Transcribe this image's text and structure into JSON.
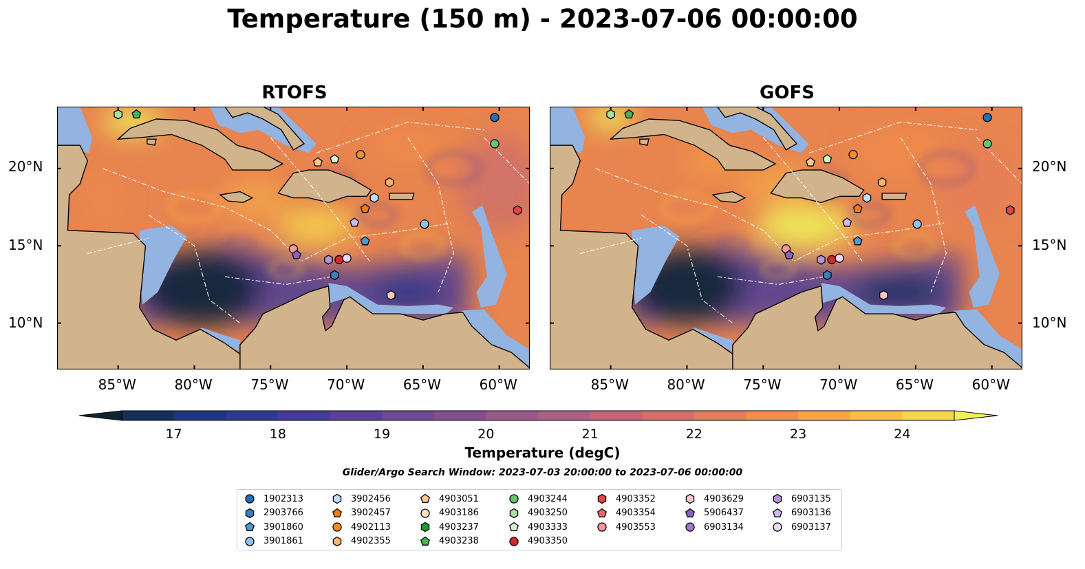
{
  "title": "Temperature (150 m) - 2023-07-06 00:00:00",
  "panels": [
    {
      "title": "RTOFS"
    },
    {
      "title": "GOFS"
    }
  ],
  "axes": {
    "x_ticks": [
      "85°W",
      "80°W",
      "75°W",
      "70°W",
      "65°W",
      "60°W"
    ],
    "y_ticks": [
      "20°N",
      "15°N",
      "10°N"
    ]
  },
  "colorbar": {
    "ticks": [
      "17",
      "18",
      "19",
      "20",
      "21",
      "22",
      "23",
      "24"
    ],
    "label": "Temperature (degC)",
    "range": [
      16.5,
      24.5
    ],
    "extend": "both"
  },
  "search_window": "Glider/Argo Search Window: 2023-07-03 20:00:00 to 2023-07-06 00:00:00",
  "legend": {
    "columns": [
      [
        {
          "id": "1902313",
          "marker": "circle",
          "color": "#1f6fb4"
        },
        {
          "id": "2903766",
          "marker": "hexagon",
          "color": "#3a7fc2"
        },
        {
          "id": "3901860",
          "marker": "pentagon",
          "color": "#4d9ad8"
        },
        {
          "id": "3901861",
          "marker": "circle",
          "color": "#8cc3ec"
        }
      ],
      [
        {
          "id": "3902456",
          "marker": "hexagon",
          "color": "#bfe1f7"
        },
        {
          "id": "3902457",
          "marker": "pentagon",
          "color": "#f07b0e"
        },
        {
          "id": "4902113",
          "marker": "circle",
          "color": "#fb8c2a"
        },
        {
          "id": "4902355",
          "marker": "hexagon",
          "color": "#fdb36b"
        }
      ],
      [
        {
          "id": "4903051",
          "marker": "pentagon",
          "color": "#fdc88f"
        },
        {
          "id": "4903186",
          "marker": "circle",
          "color": "#fde0c2"
        },
        {
          "id": "4903237",
          "marker": "hexagon",
          "color": "#1e9b2e"
        },
        {
          "id": "4903238",
          "marker": "pentagon",
          "color": "#46b550"
        }
      ],
      [
        {
          "id": "4903244",
          "marker": "circle",
          "color": "#6ac46c"
        },
        {
          "id": "4903250",
          "marker": "hexagon",
          "color": "#a6e3a0"
        },
        {
          "id": "4903333",
          "marker": "pentagon",
          "color": "#d6f5d0"
        },
        {
          "id": "4903350",
          "marker": "circle",
          "color": "#d42a2a"
        }
      ],
      [
        {
          "id": "4903352",
          "marker": "hexagon",
          "color": "#e04848"
        },
        {
          "id": "4903354",
          "marker": "pentagon",
          "color": "#ec6a6a"
        },
        {
          "id": "4903553",
          "marker": "circle",
          "color": "#f59a9a"
        }
      ],
      [
        {
          "id": "4903629",
          "marker": "hexagon",
          "color": "#fbc8c8"
        },
        {
          "id": "5906437",
          "marker": "pentagon",
          "color": "#8a62c2"
        },
        {
          "id": "6903134",
          "marker": "circle",
          "color": "#a07ad0"
        }
      ],
      [
        {
          "id": "6903135",
          "marker": "hexagon",
          "color": "#b692dc"
        },
        {
          "id": "6903136",
          "marker": "pentagon",
          "color": "#d2b7ee"
        },
        {
          "id": "6903137",
          "marker": "circle",
          "color": "#ead9f8"
        }
      ]
    ]
  },
  "map_extent": {
    "lon": [
      -89,
      -58
    ],
    "lat": [
      7,
      24
    ]
  },
  "observations": [
    {
      "lon": -85,
      "lat": 23.5,
      "marker": "hexagon",
      "color": "#a6e3a0"
    },
    {
      "lon": -83.8,
      "lat": 23.5,
      "marker": "pentagon",
      "color": "#46b550"
    },
    {
      "lon": -60.3,
      "lat": 23.3,
      "marker": "circle",
      "color": "#1f6fb4"
    },
    {
      "lon": -60.3,
      "lat": 21.6,
      "marker": "circle",
      "color": "#6ac46c"
    },
    {
      "lon": -69.1,
      "lat": 20.9,
      "marker": "circle",
      "color": "#fb8c2a"
    },
    {
      "lon": -70.8,
      "lat": 20.6,
      "marker": "pentagon",
      "color": "#d6f5d0"
    },
    {
      "lon": -71.9,
      "lat": 20.4,
      "marker": "pentagon",
      "color": "#fdc88f"
    },
    {
      "lon": -67.2,
      "lat": 19.1,
      "marker": "hexagon",
      "color": "#fdb36b"
    },
    {
      "lon": -68.2,
      "lat": 18.1,
      "marker": "hexagon",
      "color": "#bfe1f7"
    },
    {
      "lon": -68.8,
      "lat": 17.4,
      "marker": "pentagon",
      "color": "#f07b0e"
    },
    {
      "lon": -58.8,
      "lat": 17.3,
      "marker": "hexagon",
      "color": "#e04848"
    },
    {
      "lon": -69.5,
      "lat": 16.5,
      "marker": "pentagon",
      "color": "#d2b7ee"
    },
    {
      "lon": -64.9,
      "lat": 16.4,
      "marker": "circle",
      "color": "#8cc3ec"
    },
    {
      "lon": -68.8,
      "lat": 15.3,
      "marker": "pentagon",
      "color": "#4d9ad8"
    },
    {
      "lon": -73.5,
      "lat": 14.8,
      "marker": "circle",
      "color": "#f59a9a"
    },
    {
      "lon": -73.3,
      "lat": 14.4,
      "marker": "pentagon",
      "color": "#8a62c2"
    },
    {
      "lon": -71.2,
      "lat": 14.1,
      "marker": "hexagon",
      "color": "#b692dc"
    },
    {
      "lon": -70.5,
      "lat": 14.1,
      "marker": "circle",
      "color": "#d42a2a"
    },
    {
      "lon": -70.0,
      "lat": 14.2,
      "marker": "circle",
      "color": "#ead9f8"
    },
    {
      "lon": -70.8,
      "lat": 13.1,
      "marker": "hexagon",
      "color": "#3a7fc2"
    },
    {
      "lon": -67.1,
      "lat": 11.8,
      "marker": "hexagon",
      "color": "#fbc8c8"
    }
  ],
  "colors": {
    "land": "#d2b48c",
    "shelf": "#93b3e0",
    "colormap": [
      "#0d2535",
      "#14305a",
      "#1f3580",
      "#2c3a95",
      "#453c98",
      "#5a4196",
      "#6f4a94",
      "#83508f",
      "#985a8a",
      "#ad6182",
      "#c26777",
      "#d56f6a",
      "#e57c5b",
      "#f28e49",
      "#f8a542",
      "#f9be45",
      "#f5d84a",
      "#eef05a"
    ]
  }
}
